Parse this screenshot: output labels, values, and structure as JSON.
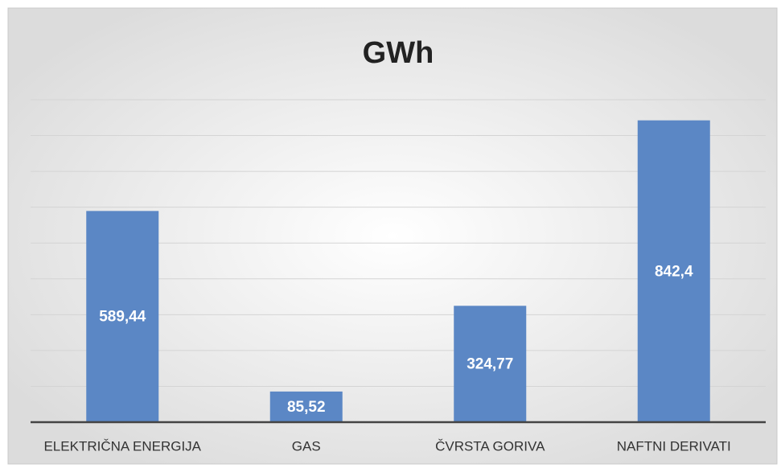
{
  "chart_data": {
    "type": "bar",
    "title": "GWh",
    "categories": [
      "ELEKTRIČNA ENERGIJA",
      "GAS",
      "ČVRSTA GORIVA",
      "NAFTNI DERIVATI"
    ],
    "values": [
      589.44,
      85.52,
      324.77,
      842.4
    ],
    "value_labels": [
      "589,44",
      "85,52",
      "324,77",
      "842,4"
    ],
    "color": "#5b87c5",
    "ylim": [
      0,
      900
    ],
    "yticks": [
      0,
      100,
      200,
      300,
      400,
      500,
      600,
      700,
      800,
      900
    ],
    "grid": true
  }
}
